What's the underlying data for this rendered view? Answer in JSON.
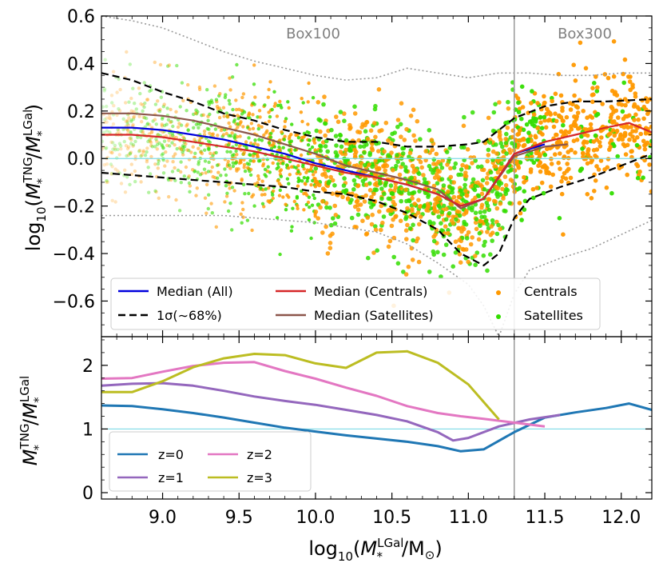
{
  "chart_data": [
    {
      "type": "scatter",
      "panel": "top",
      "ylabel": "log10(M*TNG/M*LGal)",
      "ylabel_parts": {
        "pre": "log",
        "sub": "10",
        "open": "(",
        "num": "M",
        "num_sub": "*",
        "num_sup": "TNG",
        "slash": "/",
        "den": "M",
        "den_sub": "*",
        "den_sup": "LGal",
        "close": ")"
      },
      "xlim": [
        8.6,
        12.2
      ],
      "ylim": [
        -0.75,
        0.6
      ],
      "yticks": [
        0.6,
        0.4,
        0.2,
        0.0,
        -0.2,
        -0.4,
        -0.6
      ],
      "ytick_labels": [
        "0.6",
        "0.4",
        "0.2",
        "0.0",
        "−0.2",
        "−0.4",
        "−0.6"
      ],
      "annotations": [
        "Box100",
        "Box300"
      ],
      "divider_x": 11.3,
      "reference_line_y": 0.0,
      "series": [
        {
          "name": "Median (All)",
          "color": "#0000dd",
          "style": "solid",
          "x": [
            8.6,
            8.8,
            9.0,
            9.2,
            9.4,
            9.6,
            9.8,
            10.0,
            10.2,
            10.4,
            10.6,
            10.8,
            10.95,
            11.1,
            11.3,
            11.5
          ],
          "y": [
            0.13,
            0.13,
            0.12,
            0.1,
            0.08,
            0.05,
            0.02,
            -0.02,
            -0.05,
            -0.08,
            -0.11,
            -0.15,
            -0.2,
            -0.17,
            0.02,
            0.06
          ]
        },
        {
          "name": "Median (Centrals)",
          "color": "#d62728",
          "style": "solid",
          "x": [
            8.6,
            8.8,
            9.0,
            9.2,
            9.4,
            9.6,
            9.8,
            10.0,
            10.2,
            10.4,
            10.6,
            10.8,
            10.95,
            11.1,
            11.3,
            11.5,
            11.7,
            11.9,
            12.05,
            12.2
          ],
          "y": [
            0.1,
            0.1,
            0.09,
            0.07,
            0.05,
            0.03,
            0.0,
            -0.03,
            -0.06,
            -0.08,
            -0.11,
            -0.15,
            -0.2,
            -0.17,
            0.02,
            0.07,
            0.1,
            0.13,
            0.15,
            0.11
          ]
        },
        {
          "name": "Median (Satellites)",
          "color": "#8c564b",
          "style": "solid",
          "x": [
            8.6,
            8.8,
            9.0,
            9.2,
            9.4,
            9.6,
            9.8,
            10.0,
            10.2,
            10.4,
            10.6,
            10.8,
            10.95,
            11.1,
            11.3,
            11.5,
            11.65
          ],
          "y": [
            0.19,
            0.19,
            0.18,
            0.16,
            0.13,
            0.1,
            0.06,
            0.02,
            -0.03,
            -0.06,
            -0.09,
            -0.13,
            -0.21,
            -0.17,
            0.01,
            0.05,
            0.06
          ]
        },
        {
          "name": "1σ(~68%)",
          "color": "#000000",
          "style": "dashed",
          "x": [
            8.6,
            8.8,
            9.0,
            9.2,
            9.4,
            9.6,
            9.8,
            10.0,
            10.2,
            10.4,
            10.6,
            10.8,
            11.0,
            11.1,
            11.3,
            11.5,
            11.7,
            11.9,
            12.2
          ],
          "y": [
            0.36,
            0.33,
            0.28,
            0.24,
            0.19,
            0.16,
            0.12,
            0.09,
            0.07,
            0.07,
            0.05,
            0.05,
            0.06,
            0.07,
            0.17,
            0.22,
            0.24,
            0.24,
            0.25
          ]
        },
        {
          "name": "1σ lower",
          "color": "#000000",
          "style": "dashed",
          "x": [
            8.6,
            8.8,
            9.0,
            9.2,
            9.4,
            9.6,
            9.8,
            10.0,
            10.2,
            10.4,
            10.6,
            10.8,
            10.95,
            11.1,
            11.2,
            11.3,
            11.4,
            11.6,
            11.8,
            12.0,
            12.2
          ],
          "y": [
            -0.06,
            -0.07,
            -0.08,
            -0.09,
            -0.1,
            -0.11,
            -0.12,
            -0.14,
            -0.15,
            -0.18,
            -0.23,
            -0.3,
            -0.4,
            -0.45,
            -0.4,
            -0.25,
            -0.17,
            -0.12,
            -0.08,
            -0.03,
            0.02
          ]
        },
        {
          "name": "2σ upper",
          "color": "#999999",
          "style": "dotted",
          "x": [
            8.6,
            8.8,
            9.0,
            9.2,
            9.4,
            9.6,
            9.8,
            10.0,
            10.2,
            10.4,
            10.6,
            10.8,
            11.0,
            11.2,
            11.4,
            11.6,
            11.8,
            12.0,
            12.2
          ],
          "y": [
            0.6,
            0.58,
            0.55,
            0.5,
            0.45,
            0.41,
            0.38,
            0.35,
            0.33,
            0.34,
            0.38,
            0.36,
            0.34,
            0.36,
            0.36,
            0.35,
            0.35,
            0.36,
            0.36
          ]
        },
        {
          "name": "2σ lower",
          "color": "#999999",
          "style": "dotted",
          "x": [
            8.6,
            8.8,
            9.0,
            9.2,
            9.4,
            9.6,
            9.8,
            10.0,
            10.2,
            10.4,
            10.6,
            10.8,
            11.0,
            11.1,
            11.2,
            11.3,
            11.4,
            11.6,
            11.8,
            12.0,
            12.2
          ],
          "y": [
            -0.24,
            -0.24,
            -0.24,
            -0.24,
            -0.24,
            -0.25,
            -0.26,
            -0.27,
            -0.29,
            -0.31,
            -0.36,
            -0.44,
            -0.53,
            -0.62,
            -0.75,
            -0.57,
            -0.47,
            -0.42,
            -0.38,
            -0.32,
            -0.26
          ]
        }
      ],
      "scatter": [
        {
          "name": "Centrals",
          "color": "#ff9900"
        },
        {
          "name": "Satellites",
          "color": "#33dd00"
        }
      ],
      "legend": {
        "placement": "bottom",
        "entries": [
          {
            "label": "Median (All)",
            "color": "#0000dd",
            "kind": "line"
          },
          {
            "label": "Median (Centrals)",
            "color": "#d62728",
            "kind": "line"
          },
          {
            "label": "Centrals",
            "color": "#ff9900",
            "kind": "dot"
          },
          {
            "label": "1σ(∼68%)",
            "color": "#000000",
            "kind": "dash"
          },
          {
            "label": "Median (Satellites)",
            "color": "#8c564b",
            "kind": "line"
          },
          {
            "label": "Satellites",
            "color": "#33dd00",
            "kind": "dot"
          }
        ]
      }
    },
    {
      "type": "line",
      "panel": "bottom",
      "ylabel": "M*TNG/M*LGal",
      "ylabel_parts": {
        "num": "M",
        "num_sub": "*",
        "num_sup": "TNG",
        "slash": "/",
        "den": "M",
        "den_sub": "*",
        "den_sup": "LGal"
      },
      "xlabel": "log10(M*LGal/M⊙)",
      "xlabel_parts": {
        "pre": "log",
        "sub": "10",
        "open": "(",
        "m": "M",
        "m_sub": "*",
        "m_sup": "LGal",
        "rest": "/M",
        "sun": "⊙",
        "close": ")"
      },
      "xlim": [
        8.6,
        12.2
      ],
      "ylim": [
        -0.1,
        2.45
      ],
      "xticks": [
        9.0,
        9.5,
        10.0,
        10.5,
        11.0,
        11.5,
        12.0
      ],
      "xtick_labels": [
        "9.0",
        "9.5",
        "10.0",
        "10.5",
        "11.0",
        "11.5",
        "12.0"
      ],
      "yticks": [
        0,
        1,
        2
      ],
      "ytick_labels": [
        "0",
        "1",
        "2"
      ],
      "reference_line_y": 1.0,
      "divider_x": 11.3,
      "series": [
        {
          "name": "z=0",
          "color": "#1f77b4",
          "x": [
            8.6,
            8.8,
            9.0,
            9.2,
            9.4,
            9.6,
            9.8,
            10.0,
            10.2,
            10.4,
            10.6,
            10.8,
            10.95,
            11.1,
            11.3,
            11.5,
            11.7,
            11.9,
            12.05,
            12.2
          ],
          "y": [
            1.37,
            1.36,
            1.31,
            1.25,
            1.18,
            1.1,
            1.02,
            0.96,
            0.9,
            0.85,
            0.8,
            0.73,
            0.65,
            0.68,
            0.95,
            1.18,
            1.26,
            1.33,
            1.4,
            1.3
          ]
        },
        {
          "name": "z=1",
          "color": "#9467bd",
          "x": [
            8.6,
            8.8,
            9.0,
            9.2,
            9.4,
            9.6,
            9.8,
            10.0,
            10.2,
            10.4,
            10.6,
            10.8,
            10.9,
            11.0,
            11.2,
            11.4,
            11.6
          ],
          "y": [
            1.68,
            1.71,
            1.72,
            1.68,
            1.6,
            1.51,
            1.44,
            1.38,
            1.3,
            1.22,
            1.12,
            0.95,
            0.82,
            0.86,
            1.04,
            1.15,
            1.22
          ]
        },
        {
          "name": "z=2",
          "color": "#e377c2",
          "x": [
            8.6,
            8.8,
            9.0,
            9.2,
            9.4,
            9.6,
            9.8,
            10.0,
            10.2,
            10.4,
            10.6,
            10.8,
            10.95,
            11.1,
            11.3,
            11.5
          ],
          "y": [
            1.79,
            1.8,
            1.9,
            1.99,
            2.04,
            2.05,
            1.91,
            1.79,
            1.65,
            1.52,
            1.36,
            1.25,
            1.2,
            1.16,
            1.1,
            1.04
          ]
        },
        {
          "name": "z=3",
          "color": "#bcbd22",
          "x": [
            8.6,
            8.8,
            9.0,
            9.2,
            9.4,
            9.6,
            9.8,
            10.0,
            10.2,
            10.4,
            10.6,
            10.8,
            11.0,
            11.2
          ],
          "y": [
            1.58,
            1.58,
            1.75,
            1.97,
            2.11,
            2.18,
            2.16,
            2.03,
            1.96,
            2.2,
            2.22,
            2.04,
            1.7,
            1.15
          ]
        }
      ],
      "legend": {
        "placement": "bottom-left",
        "entries": [
          {
            "label": "z=0",
            "color": "#1f77b4"
          },
          {
            "label": "z=2",
            "color": "#e377c2"
          },
          {
            "label": "z=1",
            "color": "#9467bd"
          },
          {
            "label": "z=3",
            "color": "#bcbd22"
          }
        ]
      }
    }
  ]
}
